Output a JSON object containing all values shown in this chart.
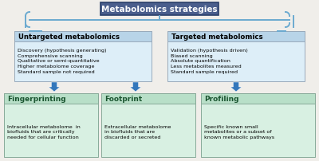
{
  "title": "Metabolomics strategies",
  "title_bg": "#4a5e8c",
  "title_text_color": "white",
  "bracket_color": "#6baad0",
  "untargeted_title": "Untargeted metabolomics",
  "untargeted_bullet": "Discovery (hypothesis generating)\nComprehensive scanning\nQualitative or semi-quantitative\nHigher metabolome coverage\nStandard sample not required",
  "targeted_title": "Targeted metabolomics",
  "targeted_bullet": "Validation (hypothesis driven)\nBiased scanning\nAbsolute quantification\nLess metabolites measured\nStandard sample required",
  "box_title_bg": "#b8d4e8",
  "box_body_bg": "#ddeef8",
  "arrow_color": "#3377bb",
  "fp_title": "Fingerprinting",
  "fp_body": "Intracellular metabolome  in\nbiofluids that are critically\nneeded for cellular function",
  "fo_title": "Footprint",
  "fo_body": "Extracellular metabolome\nin biofluids that are\ndiscarded or secreted",
  "pr_title": "Profiling",
  "pr_body": "Specific known small\nmetabolites or a subset of\nknown metabolic pathways",
  "bottom_title_bg": "#b8dfc8",
  "bottom_body_bg": "#d8f0e2",
  "bottom_title_color": "#1a5530",
  "bg_color": "#f0eeea"
}
